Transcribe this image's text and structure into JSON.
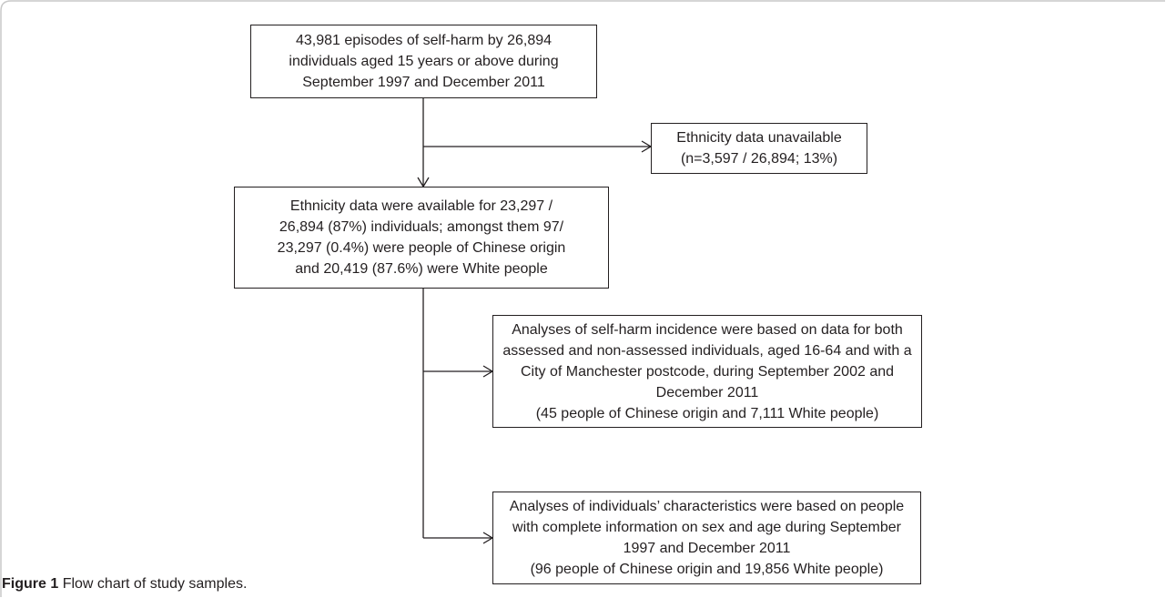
{
  "boxes": {
    "start": [
      "43,981 episodes of self-harm by 26,894",
      "individuals aged 15 years or above during",
      "September 1997 and December 2011"
    ],
    "unavailable": [
      "Ethnicity data unavailable",
      "(n=3,597 / 26,894; 13%)"
    ],
    "available": [
      "Ethnicity data were available for 23,297 /",
      "26,894 (87%) individuals; amongst them 97/",
      "23,297 (0.4%) were people of Chinese origin",
      "and 20,419 (87.6%) were White people"
    ],
    "incidence": [
      "Analyses of self-harm incidence were based on data for both",
      "assessed and non-assessed individuals, aged 16-64 and with a",
      "City of Manchester postcode, during September 2002 and",
      "December 2011",
      "(45 people of Chinese origin and 7,111 White people)"
    ],
    "characteristics": [
      "Analyses of individuals’ characteristics were based on people",
      "with complete information on sex and age during September",
      "1997 and December 2011",
      "(96 people of Chinese origin and 19,856 White people)"
    ]
  },
  "caption": {
    "label": "Figure 1",
    "text": "Flow chart of study samples."
  }
}
